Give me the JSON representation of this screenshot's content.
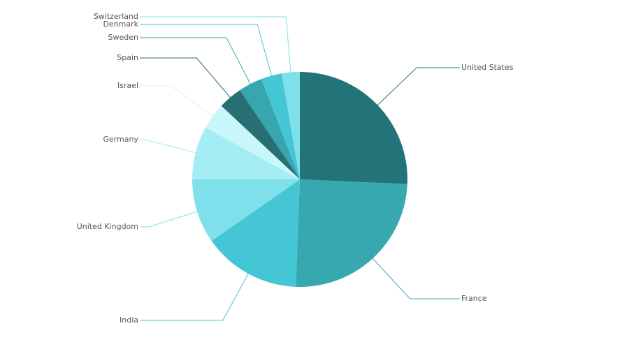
{
  "chart_data": {
    "type": "pie",
    "categories": [
      "United States",
      "France",
      "India",
      "United Kingdom",
      "Germany",
      "Israel",
      "Spain",
      "Sweden",
      "Denmark",
      "Switzerland"
    ],
    "values": [
      25.7,
      24.9,
      14.7,
      9.7,
      8,
      4,
      3.6,
      3.6,
      3.1,
      2.7
    ],
    "colors": [
      "#237479",
      "#38a8b0",
      "#45c6d4",
      "#7fe0ec",
      "#a5edf4",
      "#c9f6fa",
      "#276f73",
      "#38a6ae",
      "#45c6d4",
      "#7fdfeb"
    ]
  }
}
